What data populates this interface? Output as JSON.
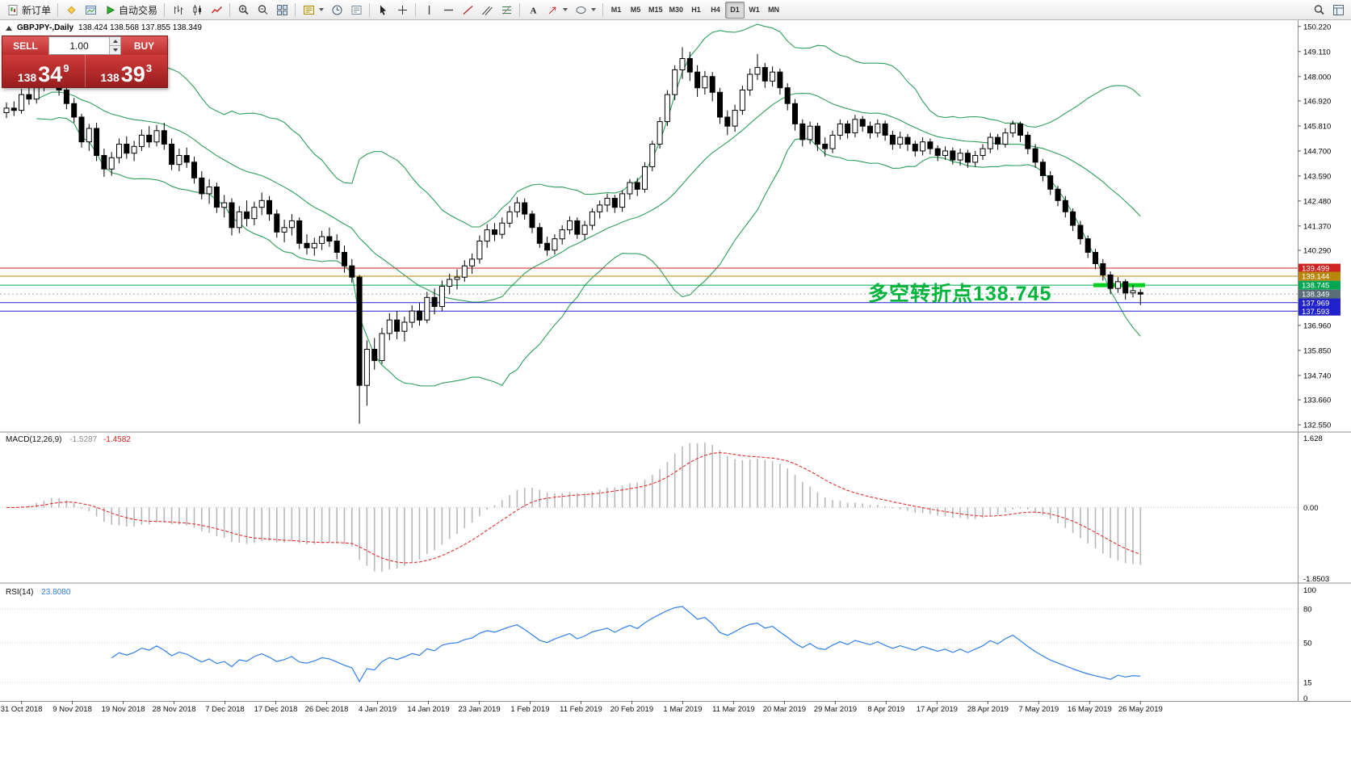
{
  "toolbar": {
    "new_order_label": "新订单",
    "autotrading_label": "自动交易",
    "timeframes": [
      "M1",
      "M5",
      "M15",
      "M30",
      "H1",
      "H4",
      "D1",
      "W1",
      "MN"
    ],
    "active_timeframe": "D1",
    "icons": [
      "new-order",
      "metaeditor",
      "charts-window",
      "autotrading-play",
      "bar-chart",
      "candlestick-chart",
      "line-chart",
      "zoom-in",
      "zoom-out",
      "tile-windows",
      "profiles",
      "period-converter-clock",
      "news",
      "cursor",
      "crosshair",
      "vertical-line",
      "horizontal-line",
      "trendline",
      "equidistant-channel",
      "fibonacci",
      "text-label",
      "arrow",
      "shapes",
      "search",
      "chart-list"
    ]
  },
  "chart_header": {
    "symbol": "GBPJPY-,Daily",
    "ohlc": "138.424 138.568 137.855 138.349"
  },
  "trade_panel": {
    "sell_label": "SELL",
    "buy_label": "BUY",
    "volume": "1.00",
    "sell_price": {
      "int": "138",
      "pips": "34",
      "pt": "9"
    },
    "buy_price": {
      "int": "138",
      "pips": "39",
      "pt": "3"
    }
  },
  "annotation": {
    "text": "多空转折点138.745",
    "color": "#00b43c"
  },
  "indicators": {
    "macd": {
      "label": "MACD(12,26,9)",
      "value_main": "-1.5287",
      "value_signal": "-1.4582",
      "axis_labels": [
        "1.628",
        "0.00",
        "-1.8503"
      ]
    },
    "rsi": {
      "label": "RSI(14)",
      "value": "23.8080",
      "axis_labels": [
        "100",
        "80",
        "50",
        "15",
        "0"
      ],
      "levels": [
        80,
        50,
        15
      ]
    }
  },
  "chart_data": {
    "type": "candlestick",
    "symbol": "GBPJPY",
    "timeframe": "Daily",
    "price_range": [
      132.3,
      150.5
    ],
    "price_axis_ticks": [
      "150.220",
      "149.110",
      "148.000",
      "146.920",
      "145.810",
      "144.700",
      "143.590",
      "142.480",
      "141.370",
      "140.290",
      "136.960",
      "135.850",
      "134.740",
      "133.660",
      "132.550"
    ],
    "price_lines": [
      {
        "price": 139.499,
        "label": "139.499",
        "color": "#cc2222"
      },
      {
        "price": 139.144,
        "label": "139.144",
        "color": "#b8860b"
      },
      {
        "price": 138.745,
        "label": "138.745",
        "color": "#00a651"
      },
      {
        "price": 137.969,
        "label": "137.969",
        "color": "#2222cc"
      },
      {
        "price": 137.593,
        "label": "137.593",
        "color": "#2222cc"
      }
    ],
    "current_price": {
      "price": 138.349,
      "label": "138.349",
      "color": "#5a6e78"
    },
    "highlight_level": {
      "price": 138.745,
      "color": "#00d020"
    },
    "bollinger": {
      "period": 20,
      "deviation": 2,
      "color": "#2e9e5b"
    },
    "macd_colors": {
      "histogram": "#b8b8b8",
      "signal": "#e03030"
    },
    "rsi_color": "#3080e8",
    "dates": [
      "31 Oct 2018",
      "9 Nov 2018",
      "19 Nov 2018",
      "28 Nov 2018",
      "7 Dec 2018",
      "17 Dec 2018",
      "26 Dec 2018",
      "4 Jan 2019",
      "14 Jan 2019",
      "23 Jan 2019",
      "1 Feb 2019",
      "11 Feb 2019",
      "20 Feb 2019",
      "1 Mar 2019",
      "11 Mar 2019",
      "20 Mar 2019",
      "29 Mar 2019",
      "8 Apr 2019",
      "17 Apr 2019",
      "28 Apr 2019",
      "7 May 2019",
      "16 May 2019",
      "26 May 2019"
    ],
    "candles": [
      [
        146.4,
        146.85,
        146.15,
        146.6
      ],
      [
        146.6,
        146.9,
        146.25,
        146.5
      ],
      [
        146.5,
        147.45,
        146.35,
        147.2
      ],
      [
        147.2,
        147.55,
        146.75,
        147.0
      ],
      [
        147.0,
        147.95,
        146.8,
        147.7
      ],
      [
        147.7,
        148.15,
        147.35,
        147.9
      ],
      [
        147.9,
        148.45,
        147.55,
        148.2
      ],
      [
        148.2,
        148.35,
        147.15,
        147.4
      ],
      [
        147.4,
        147.75,
        146.55,
        146.8
      ],
      [
        146.8,
        147.05,
        145.95,
        146.2
      ],
      [
        146.2,
        146.35,
        144.85,
        145.1
      ],
      [
        145.1,
        145.9,
        144.7,
        145.7
      ],
      [
        145.7,
        145.95,
        144.25,
        144.5
      ],
      [
        144.5,
        144.8,
        143.55,
        143.9
      ],
      [
        143.9,
        144.65,
        143.6,
        144.4
      ],
      [
        144.4,
        145.25,
        144.15,
        145.0
      ],
      [
        145.0,
        145.35,
        144.35,
        144.6
      ],
      [
        144.6,
        145.15,
        144.25,
        144.9
      ],
      [
        144.9,
        145.65,
        144.7,
        145.4
      ],
      [
        145.4,
        145.8,
        144.85,
        145.1
      ],
      [
        145.1,
        145.85,
        144.9,
        145.6
      ],
      [
        145.6,
        145.95,
        144.75,
        145.0
      ],
      [
        145.0,
        145.25,
        143.85,
        144.1
      ],
      [
        144.1,
        144.8,
        143.8,
        144.5
      ],
      [
        144.5,
        144.85,
        143.95,
        144.2
      ],
      [
        144.2,
        144.45,
        143.25,
        143.5
      ],
      [
        143.5,
        143.8,
        142.55,
        142.8
      ],
      [
        142.8,
        143.45,
        142.35,
        143.1
      ],
      [
        143.1,
        143.3,
        141.95,
        142.2
      ],
      [
        142.2,
        142.75,
        141.75,
        142.4
      ],
      [
        142.4,
        142.6,
        140.95,
        141.3
      ],
      [
        141.3,
        142.25,
        141.05,
        142.0
      ],
      [
        142.0,
        142.5,
        141.35,
        141.7
      ],
      [
        141.7,
        142.45,
        141.4,
        142.2
      ],
      [
        142.2,
        142.85,
        141.85,
        142.5
      ],
      [
        142.5,
        142.7,
        141.6,
        141.9
      ],
      [
        141.9,
        142.1,
        140.85,
        141.1
      ],
      [
        141.1,
        141.65,
        140.65,
        141.3
      ],
      [
        141.3,
        141.9,
        140.95,
        141.6
      ],
      [
        141.6,
        141.75,
        140.35,
        140.6
      ],
      [
        140.6,
        141.0,
        140.1,
        140.4
      ],
      [
        140.4,
        140.85,
        140.05,
        140.6
      ],
      [
        140.6,
        141.15,
        140.3,
        140.9
      ],
      [
        140.9,
        141.3,
        140.45,
        140.7
      ],
      [
        140.7,
        141.0,
        139.9,
        140.2
      ],
      [
        140.2,
        140.5,
        139.3,
        139.6
      ],
      [
        139.6,
        139.9,
        138.85,
        139.1
      ],
      [
        139.1,
        139.2,
        132.6,
        134.3
      ],
      [
        134.3,
        136.3,
        133.4,
        135.9
      ],
      [
        135.9,
        136.4,
        135.0,
        135.4
      ],
      [
        135.4,
        136.85,
        135.25,
        136.6
      ],
      [
        136.6,
        137.5,
        136.3,
        137.2
      ],
      [
        137.2,
        137.6,
        136.35,
        136.7
      ],
      [
        136.7,
        137.35,
        136.25,
        137.1
      ],
      [
        137.1,
        137.85,
        136.85,
        137.6
      ],
      [
        137.6,
        137.95,
        136.95,
        137.2
      ],
      [
        137.2,
        138.45,
        137.05,
        138.2
      ],
      [
        138.2,
        138.6,
        137.45,
        137.8
      ],
      [
        137.8,
        138.95,
        137.6,
        138.7
      ],
      [
        138.7,
        139.25,
        138.35,
        139.0
      ],
      [
        139.0,
        139.45,
        138.55,
        139.1
      ],
      [
        139.1,
        139.85,
        138.9,
        139.6
      ],
      [
        139.6,
        140.15,
        139.25,
        139.9
      ],
      [
        139.9,
        140.95,
        139.7,
        140.7
      ],
      [
        140.7,
        141.45,
        140.4,
        141.2
      ],
      [
        141.2,
        141.5,
        140.7,
        141.0
      ],
      [
        141.0,
        141.75,
        140.8,
        141.5
      ],
      [
        141.5,
        142.25,
        141.3,
        142.0
      ],
      [
        142.0,
        142.65,
        141.75,
        142.4
      ],
      [
        142.4,
        142.6,
        141.65,
        141.9
      ],
      [
        141.9,
        142.05,
        141.05,
        141.3
      ],
      [
        141.3,
        141.5,
        140.4,
        140.6
      ],
      [
        140.6,
        140.9,
        140.05,
        140.3
      ],
      [
        140.3,
        141.0,
        140.1,
        140.8
      ],
      [
        140.8,
        141.4,
        140.55,
        141.2
      ],
      [
        141.2,
        141.8,
        141.0,
        141.6
      ],
      [
        141.6,
        141.75,
        140.8,
        141.0
      ],
      [
        141.0,
        141.6,
        140.75,
        141.4
      ],
      [
        141.4,
        142.15,
        141.2,
        142.0
      ],
      [
        142.0,
        142.5,
        141.7,
        142.3
      ],
      [
        142.3,
        142.8,
        142.0,
        142.6
      ],
      [
        142.6,
        142.75,
        141.95,
        142.2
      ],
      [
        142.2,
        142.95,
        142.0,
        142.8
      ],
      [
        142.8,
        143.45,
        142.55,
        143.3
      ],
      [
        143.3,
        143.5,
        142.7,
        143.0
      ],
      [
        143.0,
        144.2,
        142.85,
        144.0
      ],
      [
        144.0,
        145.15,
        143.8,
        145.0
      ],
      [
        145.0,
        146.2,
        144.8,
        146.0
      ],
      [
        146.0,
        147.4,
        145.8,
        147.2
      ],
      [
        147.2,
        148.5,
        146.95,
        148.3
      ],
      [
        148.3,
        149.3,
        147.9,
        148.8
      ],
      [
        148.8,
        149.1,
        147.8,
        148.2
      ],
      [
        148.2,
        148.5,
        147.1,
        147.5
      ],
      [
        147.5,
        148.25,
        147.2,
        148.0
      ],
      [
        148.0,
        148.2,
        146.9,
        147.3
      ],
      [
        147.3,
        147.5,
        145.9,
        146.2
      ],
      [
        146.2,
        146.5,
        145.4,
        145.8
      ],
      [
        145.8,
        146.75,
        145.55,
        146.5
      ],
      [
        146.5,
        147.6,
        146.3,
        147.4
      ],
      [
        147.4,
        148.35,
        147.15,
        148.1
      ],
      [
        148.1,
        149.0,
        147.85,
        148.4
      ],
      [
        148.4,
        148.6,
        147.5,
        147.8
      ],
      [
        147.8,
        148.45,
        147.55,
        148.2
      ],
      [
        148.2,
        148.35,
        147.2,
        147.5
      ],
      [
        147.5,
        147.7,
        146.5,
        146.8
      ],
      [
        146.8,
        147.0,
        145.6,
        145.9
      ],
      [
        145.9,
        146.1,
        144.9,
        145.2
      ],
      [
        145.2,
        146.0,
        145.0,
        145.8
      ],
      [
        145.8,
        145.95,
        144.7,
        145.0
      ],
      [
        145.0,
        145.3,
        144.45,
        144.8
      ],
      [
        144.8,
        145.6,
        144.6,
        145.4
      ],
      [
        145.4,
        146.1,
        145.2,
        145.9
      ],
      [
        145.9,
        146.05,
        145.25,
        145.5
      ],
      [
        145.5,
        146.3,
        145.3,
        146.1
      ],
      [
        146.1,
        146.25,
        145.55,
        145.8
      ],
      [
        145.8,
        146.0,
        145.25,
        145.5
      ],
      [
        145.5,
        146.1,
        145.3,
        145.9
      ],
      [
        145.9,
        146.05,
        145.15,
        145.4
      ],
      [
        145.4,
        145.6,
        144.75,
        145.0
      ],
      [
        145.0,
        145.55,
        144.8,
        145.3
      ],
      [
        145.3,
        145.45,
        144.7,
        145.0
      ],
      [
        145.0,
        145.15,
        144.45,
        144.7
      ],
      [
        144.7,
        145.3,
        144.5,
        145.1
      ],
      [
        145.1,
        145.25,
        144.55,
        144.8
      ],
      [
        144.8,
        144.95,
        144.25,
        144.5
      ],
      [
        144.5,
        144.9,
        144.3,
        144.7
      ],
      [
        144.7,
        144.85,
        144.1,
        144.3
      ],
      [
        144.3,
        144.8,
        144.05,
        144.6
      ],
      [
        144.6,
        144.75,
        143.95,
        144.2
      ],
      [
        144.2,
        144.7,
        144.0,
        144.5
      ],
      [
        144.5,
        145.0,
        144.3,
        144.8
      ],
      [
        144.8,
        145.5,
        144.6,
        145.3
      ],
      [
        145.3,
        145.45,
        144.75,
        145.0
      ],
      [
        145.0,
        145.7,
        144.85,
        145.5
      ],
      [
        145.5,
        146.05,
        145.3,
        145.9
      ],
      [
        145.9,
        146.0,
        145.1,
        145.4
      ],
      [
        145.4,
        145.55,
        144.55,
        144.8
      ],
      [
        144.8,
        145.0,
        143.95,
        144.2
      ],
      [
        144.2,
        144.35,
        143.35,
        143.6
      ],
      [
        143.6,
        143.8,
        142.75,
        143.0
      ],
      [
        143.0,
        143.15,
        142.25,
        142.5
      ],
      [
        142.5,
        142.7,
        141.75,
        142.0
      ],
      [
        142.0,
        142.15,
        141.15,
        141.4
      ],
      [
        141.4,
        141.6,
        140.55,
        140.8
      ],
      [
        140.8,
        140.95,
        139.95,
        140.2
      ],
      [
        140.2,
        140.35,
        139.45,
        139.7
      ],
      [
        139.7,
        139.9,
        138.95,
        139.2
      ],
      [
        139.2,
        139.35,
        138.35,
        138.6
      ],
      [
        138.6,
        139.1,
        138.4,
        138.9
      ],
      [
        138.9,
        139.0,
        138.1,
        138.4
      ],
      [
        138.4,
        138.75,
        138.2,
        138.5
      ],
      [
        138.42,
        138.57,
        137.86,
        138.35
      ]
    ]
  }
}
